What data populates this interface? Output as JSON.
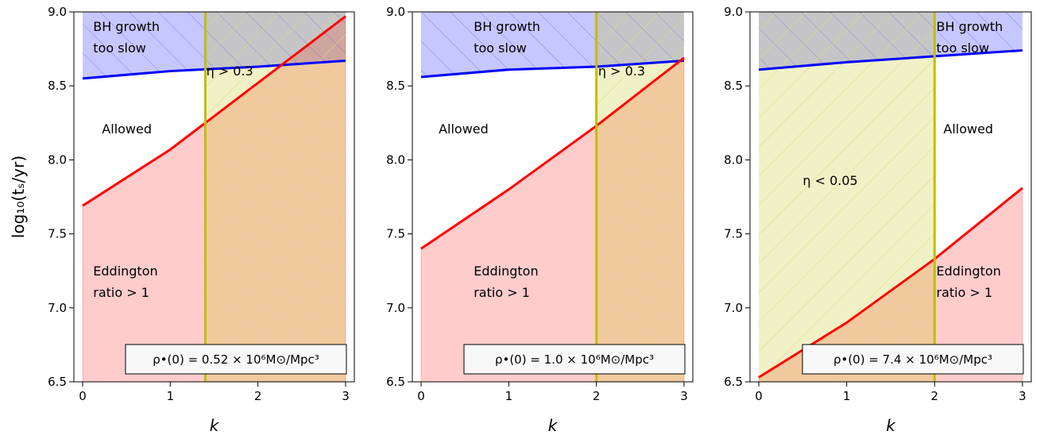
{
  "chart_data": [
    {
      "type": "area",
      "xlabel": "k",
      "ylabel": "log₁₀(tₛ/yr)",
      "xlim": [
        -0.1,
        3.1
      ],
      "ylim": [
        6.5,
        9.0
      ],
      "xticks": [
        0,
        1,
        2,
        3
      ],
      "yticks": [
        6.5,
        7.0,
        7.5,
        8.0,
        8.5,
        9.0
      ],
      "tick_labels_x": [
        "0",
        "1",
        "2",
        "3"
      ],
      "tick_labels_y": [
        "6.5",
        "7.0",
        "7.5",
        "8.0",
        "8.5",
        "9.0"
      ],
      "grid": false,
      "series": [
        {
          "role": "bh-growth-boundary",
          "color": "#0000ff",
          "x": [
            0,
            1,
            2,
            3
          ],
          "y": [
            8.55,
            8.6,
            8.63,
            8.67
          ]
        },
        {
          "role": "eddington-boundary",
          "color": "#ff0000",
          "x": [
            0,
            1,
            2,
            3
          ],
          "y": [
            7.69,
            8.07,
            8.52,
            8.97
          ]
        }
      ],
      "vline": {
        "x": 1.4,
        "color": "#bfbf00"
      },
      "shaded_side": "right",
      "regions": [
        {
          "label": "BH growth\ntoo slow",
          "x": 0.12,
          "y": 8.87
        },
        {
          "label": "Allowed",
          "x": 0.22,
          "y": 8.18
        },
        {
          "label": "Eddington\nratio > 1",
          "x": 0.12,
          "y": 7.22
        }
      ],
      "eta_label": {
        "text": "η > 0.3",
        "x": 1.41,
        "y": 8.57
      },
      "info_box": "ρ•(0) = 0.52 × 10⁶M⊙/Mpc³"
    },
    {
      "type": "area",
      "xlabel": "k",
      "ylabel": "",
      "xlim": [
        -0.1,
        3.1
      ],
      "ylim": [
        6.5,
        9.0
      ],
      "xticks": [
        0,
        1,
        2,
        3
      ],
      "yticks": [
        6.5,
        7.0,
        7.5,
        8.0,
        8.5,
        9.0
      ],
      "tick_labels_x": [
        "0",
        "1",
        "2",
        "3"
      ],
      "tick_labels_y": [
        "6.5",
        "7.0",
        "7.5",
        "8.0",
        "8.5",
        "9.0"
      ],
      "grid": false,
      "series": [
        {
          "role": "bh-growth-boundary",
          "color": "#0000ff",
          "x": [
            0,
            1,
            2,
            3
          ],
          "y": [
            8.56,
            8.61,
            8.63,
            8.67
          ]
        },
        {
          "role": "eddington-boundary",
          "color": "#ff0000",
          "x": [
            0,
            1,
            2,
            3
          ],
          "y": [
            7.4,
            7.8,
            8.23,
            8.69
          ]
        }
      ],
      "vline": {
        "x": 2.0,
        "color": "#bfbf00"
      },
      "shaded_side": "right",
      "regions": [
        {
          "label": "BH growth\ntoo slow",
          "x": 0.6,
          "y": 8.87
        },
        {
          "label": "Allowed",
          "x": 0.2,
          "y": 8.18
        },
        {
          "label": "Eddington\nratio > 1",
          "x": 0.6,
          "y": 7.22
        }
      ],
      "eta_label": {
        "text": "η > 0.3",
        "x": 2.02,
        "y": 8.57
      },
      "info_box": "ρ•(0) = 1.0 × 10⁶M⊙/Mpc³"
    },
    {
      "type": "area",
      "xlabel": "k",
      "ylabel": "",
      "xlim": [
        -0.1,
        3.1
      ],
      "ylim": [
        6.5,
        9.0
      ],
      "xticks": [
        0,
        1,
        2,
        3
      ],
      "yticks": [
        6.5,
        7.0,
        7.5,
        8.0,
        8.5,
        9.0
      ],
      "tick_labels_x": [
        "0",
        "1",
        "2",
        "3"
      ],
      "tick_labels_y": [
        "6.5",
        "7.0",
        "7.5",
        "8.0",
        "8.5",
        "9.0"
      ],
      "grid": false,
      "series": [
        {
          "role": "bh-growth-boundary",
          "color": "#0000ff",
          "x": [
            0,
            1,
            2,
            3
          ],
          "y": [
            8.61,
            8.66,
            8.7,
            8.74
          ]
        },
        {
          "role": "eddington-boundary",
          "color": "#ff0000",
          "x": [
            0,
            1,
            2,
            3
          ],
          "y": [
            6.53,
            6.9,
            7.33,
            7.81
          ]
        }
      ],
      "vline": {
        "x": 2.0,
        "color": "#bfbf00"
      },
      "shaded_side": "left",
      "regions": [
        {
          "label": "BH growth\ntoo slow",
          "x": 2.02,
          "y": 8.87
        },
        {
          "label": "Allowed",
          "x": 2.1,
          "y": 8.18
        },
        {
          "label": "Eddington\nratio > 1",
          "x": 2.02,
          "y": 7.22
        }
      ],
      "eta_label": {
        "text": "η < 0.05",
        "x": 0.5,
        "y": 7.83
      },
      "info_box": "ρ•(0) = 7.4 × 10⁶M⊙/Mpc³"
    }
  ]
}
